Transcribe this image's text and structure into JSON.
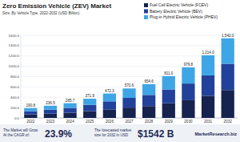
{
  "chart_data": {
    "type": "bar",
    "title": "Zero Emission Vehicle (ZEV) Market",
    "subtitle": "Size, By Vehicle Type, 2022-2032 (USD Billion)",
    "categories": [
      "2022",
      "2023",
      "2024",
      "2025",
      "2026",
      "2027",
      "2028",
      "2029",
      "2030",
      "2031",
      "2032"
    ],
    "series": [
      {
        "name": "Fuel Cell Electric Vehicle (FCEV)",
        "color": "#16234f",
        "values": [
          66.8,
          82.8,
          100.0,
          130.2,
          165.3,
          199.7,
          229.1,
          283.9,
          342.9,
          424.9,
          539.7
        ]
      },
      {
        "name": "Battery Electric Vehicle (BEV)",
        "color": "#22419a",
        "values": [
          63.0,
          78.0,
          94.3,
          122.7,
          155.9,
          188.3,
          216.0,
          267.6,
          323.3,
          400.6,
          508.9
        ]
      },
      {
        "name": "Plug-in Hybrid Electric Vehicle (PHEV)",
        "color": "#3ea6e6",
        "values": [
          61.0,
          75.7,
          91.4,
          119.0,
          151.1,
          182.6,
          209.5,
          259.5,
          313.6,
          388.5,
          493.4
        ]
      }
    ],
    "totals": [
      190.8,
      236.5,
      285.7,
      371.9,
      472.3,
      570.6,
      654.6,
      811.0,
      979.8,
      1214.0,
      1542.0
    ],
    "total_labels": [
      "190.8",
      "236.5",
      "285.7",
      "371.9",
      "472.3",
      "570.6",
      "654.6",
      "811.0",
      "979.8",
      "1,214.0",
      "1,542.0"
    ],
    "ylim": [
      0,
      1600
    ],
    "yticks": [
      {
        "value": 0,
        "label": "0.0"
      },
      {
        "value": 200,
        "label": "200.0"
      },
      {
        "value": 400,
        "label": "400.0"
      },
      {
        "value": 600,
        "label": "600.0"
      },
      {
        "value": 800,
        "label": "800.0"
      },
      {
        "value": 1000,
        "label": "1000.0"
      },
      {
        "value": 1200,
        "label": "1200.0"
      },
      {
        "value": 1400,
        "label": "1400.0"
      },
      {
        "value": 1600,
        "label": "1600.0"
      }
    ],
    "grid": true,
    "stacked": true,
    "legend": "upper right",
    "annotations": [
      "The Market will Grow",
      "At the CAGR of:",
      "23.9%",
      "The forecasted market",
      "size for 2032 in USD",
      "$1542 B",
      "MarketResearch.biz"
    ]
  }
}
